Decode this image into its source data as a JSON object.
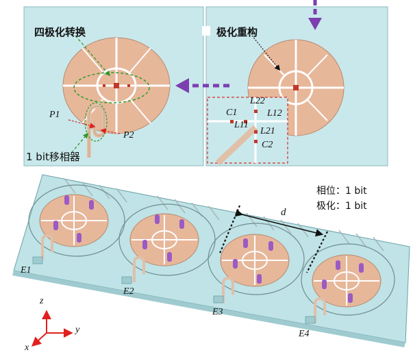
{
  "top_left": {
    "label_conversion": "四极化转换",
    "label_p1": "P1",
    "label_p2": "P2",
    "label_phase_shifter": "1 bit移相器"
  },
  "top_right": {
    "label_reconfig": "极化重构",
    "label_c1": "C1",
    "label_c2": "C2",
    "label_l11": "L11",
    "label_l12": "L12",
    "label_l21": "L21",
    "label_l22": "L22"
  },
  "array": {
    "phase_text": "相位：1 bit",
    "pol_text": "极化：1 bit",
    "spacing_label": "d",
    "elements": [
      "E1",
      "E2",
      "E3",
      "E4"
    ]
  },
  "axes": {
    "z": "z",
    "y": "y",
    "x": "x"
  },
  "colors": {
    "substrate": "#bfe3e6",
    "panel": "#c9e8eb",
    "patch": "#e7b79a",
    "arrow_purple": "#7b3fb0",
    "green_dash": "#2a9a2a",
    "red_dash": "#d0302a",
    "axis_red": "#e0201e"
  }
}
